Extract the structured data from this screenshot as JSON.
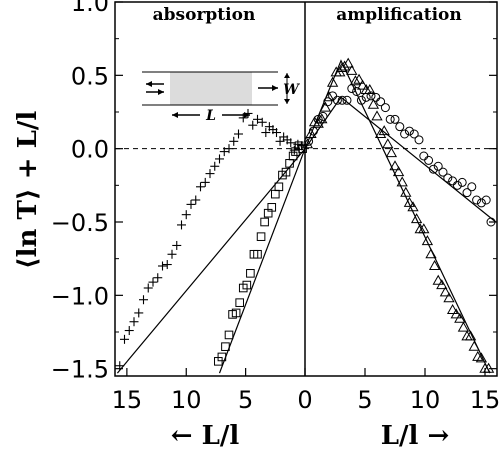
{
  "chart_data": {
    "type": "scatter",
    "title": "",
    "left_panel_label": "absorption",
    "right_panel_label": "amplification",
    "ylabel": "⟨ln T⟩ + L/l",
    "xlabel_left": "← L/l",
    "xlabel_right": "L/l →",
    "x_ticks_left": [
      "15",
      "10",
      "5",
      "0"
    ],
    "x_ticks_right": [
      "5",
      "10",
      "15"
    ],
    "y_ticks": [
      "1.0",
      "0.5",
      "0.0",
      "−0.5",
      "−1.0",
      "−1.5"
    ],
    "ylim": [
      -1.55,
      1.0
    ],
    "xlim_left": [
      16,
      0
    ],
    "xlim_right": [
      0,
      16
    ],
    "zero_line": "dashed",
    "inset": {
      "length_label": "L",
      "width_label": "W"
    },
    "series": [
      {
        "panel": "absorption",
        "marker": "plus",
        "x": [
          0.3,
          0.6,
          0.9,
          1.2,
          1.5,
          1.8,
          2.1,
          2.4,
          2.7,
          3.0,
          3.3,
          3.6,
          4.0,
          4.4,
          4.8,
          5.2,
          5.6,
          6.0,
          6.4,
          6.8,
          7.2,
          7.6,
          8.0,
          8.4,
          8.8,
          9.2,
          9.6,
          10.0,
          10.4,
          10.8,
          11.2,
          11.6,
          12.0,
          12.4,
          12.8,
          13.2,
          13.6,
          14.0,
          14.4,
          14.8,
          15.2,
          15.6
        ],
        "y": [
          0.02,
          0.03,
          -0.01,
          0.04,
          0.06,
          0.08,
          0.05,
          0.11,
          0.13,
          0.15,
          0.11,
          0.18,
          0.2,
          0.16,
          0.24,
          0.21,
          0.1,
          0.05,
          0.0,
          -0.02,
          -0.07,
          -0.12,
          -0.17,
          -0.23,
          -0.26,
          -0.35,
          -0.38,
          -0.45,
          -0.52,
          -0.66,
          -0.72,
          -0.79,
          -0.8,
          -0.88,
          -0.91,
          -0.95,
          -1.03,
          -1.12,
          -1.18,
          -1.24,
          -1.3,
          -1.48
        ]
      },
      {
        "panel": "absorption",
        "marker": "square",
        "x": [
          0.2,
          0.5,
          0.8,
          1.0,
          1.3,
          1.6,
          1.9,
          2.2,
          2.5,
          2.8,
          3.1,
          3.4,
          3.7,
          4.0,
          4.3,
          4.6,
          4.9,
          5.2,
          5.5,
          5.8,
          6.1,
          6.4,
          6.7,
          7.0,
          7.3
        ],
        "y": [
          0.0,
          0.02,
          -0.02,
          -0.05,
          -0.1,
          -0.16,
          -0.18,
          -0.26,
          -0.31,
          -0.4,
          -0.44,
          -0.5,
          -0.6,
          -0.72,
          -0.72,
          -0.85,
          -0.93,
          -0.95,
          -1.05,
          -1.12,
          -1.13,
          -1.27,
          -1.35,
          -1.42,
          -1.45
        ]
      },
      {
        "panel": "amplification",
        "marker": "triangle",
        "x": [
          0.2,
          0.5,
          0.8,
          1.1,
          1.4,
          1.7,
          2.0,
          2.3,
          2.6,
          2.9,
          3.1,
          3.3,
          3.6,
          3.9,
          4.2,
          4.5,
          4.8,
          5.1,
          5.4,
          5.7,
          6.0,
          6.3,
          6.6,
          6.9,
          7.2,
          7.5,
          7.8,
          8.1,
          8.4,
          8.7,
          9.0,
          9.3,
          9.6,
          9.9,
          10.2,
          10.5,
          10.8,
          11.1,
          11.4,
          11.7,
          12.0,
          12.3,
          12.6,
          12.9,
          13.2,
          13.5,
          13.8,
          14.1,
          14.4,
          14.7,
          15.0,
          15.3
        ],
        "y": [
          0.03,
          0.1,
          0.18,
          0.17,
          0.2,
          0.28,
          0.35,
          0.45,
          0.52,
          0.52,
          0.55,
          0.56,
          0.58,
          0.53,
          0.46,
          0.47,
          0.43,
          0.4,
          0.4,
          0.3,
          0.22,
          0.1,
          0.12,
          0.03,
          -0.03,
          -0.12,
          -0.16,
          -0.23,
          -0.3,
          -0.37,
          -0.4,
          -0.48,
          -0.55,
          -0.55,
          -0.63,
          -0.72,
          -0.8,
          -0.9,
          -0.93,
          -0.98,
          -1.02,
          -1.1,
          -1.13,
          -1.16,
          -1.22,
          -1.28,
          -1.28,
          -1.35,
          -1.42,
          -1.43,
          -1.5,
          -1.5
        ]
      },
      {
        "panel": "amplification",
        "marker": "circle",
        "x": [
          0.3,
          0.7,
          1.1,
          1.5,
          1.9,
          2.3,
          2.7,
          3.1,
          3.5,
          3.9,
          4.3,
          4.7,
          5.1,
          5.5,
          5.9,
          6.3,
          6.7,
          7.1,
          7.5,
          7.9,
          8.3,
          8.7,
          9.1,
          9.5,
          9.9,
          10.3,
          10.7,
          11.1,
          11.5,
          11.9,
          12.3,
          12.7,
          13.1,
          13.5,
          13.9,
          14.3,
          14.7,
          15.1,
          15.5
        ],
        "y": [
          0.05,
          0.12,
          0.2,
          0.22,
          0.32,
          0.36,
          0.33,
          0.33,
          0.33,
          0.41,
          0.39,
          0.33,
          0.35,
          0.36,
          0.35,
          0.32,
          0.28,
          0.2,
          0.2,
          0.15,
          0.1,
          0.12,
          0.1,
          0.06,
          -0.05,
          -0.08,
          -0.14,
          -0.12,
          -0.16,
          -0.2,
          -0.22,
          -0.25,
          -0.23,
          -0.3,
          -0.26,
          -0.35,
          -0.37,
          -0.35,
          -0.5
        ]
      }
    ],
    "fit_lines": [
      {
        "panel": "absorption",
        "x": [
          0,
          15.8
        ],
        "y": [
          0,
          -1.53
        ]
      },
      {
        "panel": "absorption",
        "x": [
          0,
          7.2
        ],
        "y": [
          0,
          -1.53
        ]
      },
      {
        "panel": "amplification",
        "x": [
          0,
          3.0,
          15.4
        ],
        "y": [
          0,
          0.6,
          -1.53
        ]
      },
      {
        "panel": "amplification",
        "x": [
          0,
          3.0,
          15.9
        ],
        "y": [
          0,
          0.35,
          -0.5
        ]
      }
    ]
  }
}
